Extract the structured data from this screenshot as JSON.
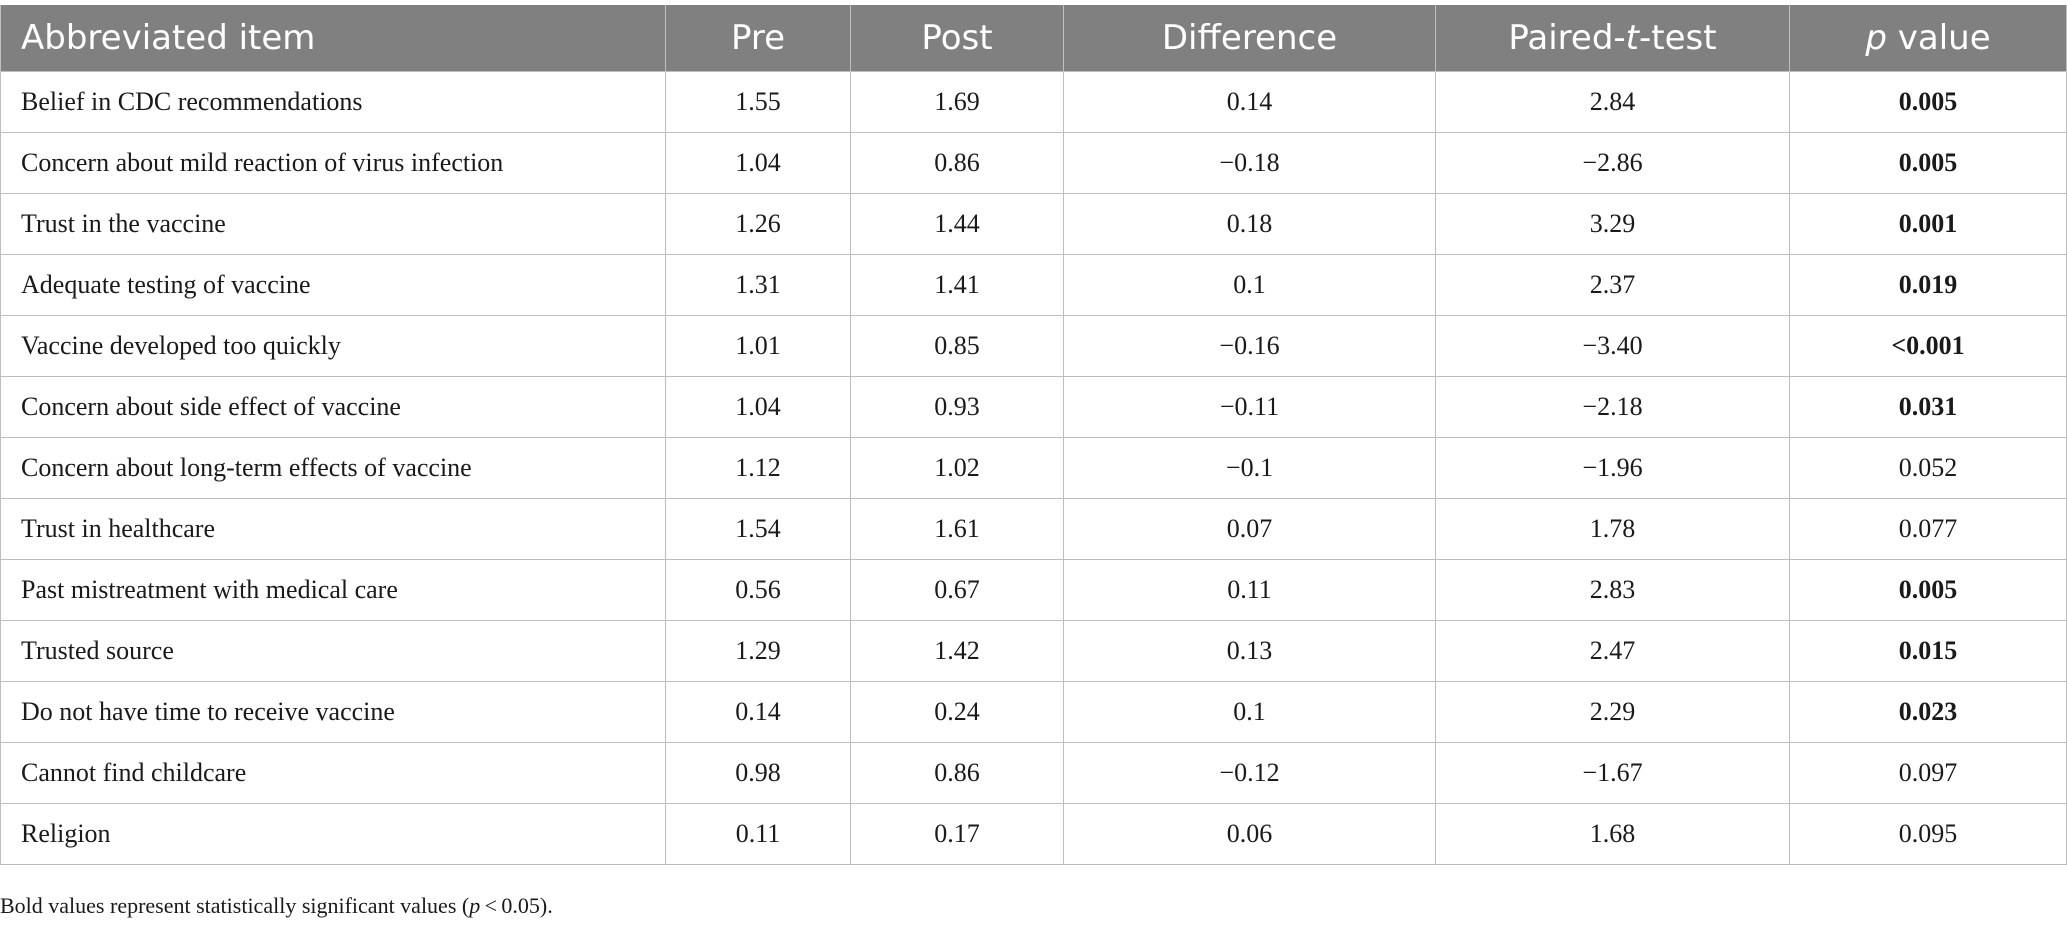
{
  "table": {
    "headers": {
      "item": "Abbreviated item",
      "pre": "Pre",
      "post": "Post",
      "difference": "Difference",
      "paired_t_prefix": "Paired-",
      "paired_t_italic": "t",
      "paired_t_suffix": "-test",
      "p_italic": "p",
      "p_suffix": " value"
    },
    "rows": [
      {
        "item": "Belief in CDC recommendations",
        "pre": "1.55",
        "post": "1.69",
        "difference": "0.14",
        "t": "2.84",
        "p": "0.005",
        "significant": true
      },
      {
        "item": "Concern about mild reaction of virus infection",
        "pre": "1.04",
        "post": "0.86",
        "difference": "−0.18",
        "t": "−2.86",
        "p": "0.005",
        "significant": true
      },
      {
        "item": "Trust in the vaccine",
        "pre": "1.26",
        "post": "1.44",
        "difference": "0.18",
        "t": "3.29",
        "p": "0.001",
        "significant": true
      },
      {
        "item": "Adequate testing of vaccine",
        "pre": "1.31",
        "post": "1.41",
        "difference": "0.1",
        "t": "2.37",
        "p": "0.019",
        "significant": true
      },
      {
        "item": "Vaccine developed too quickly",
        "pre": "1.01",
        "post": "0.85",
        "difference": "−0.16",
        "t": "−3.40",
        "p": "<0.001",
        "significant": true
      },
      {
        "item": "Concern about side effect of vaccine",
        "pre": "1.04",
        "post": "0.93",
        "difference": "−0.11",
        "t": "−2.18",
        "p": "0.031",
        "significant": true
      },
      {
        "item": "Concern about long-term effects of vaccine",
        "pre": "1.12",
        "post": "1.02",
        "difference": "−0.1",
        "t": "−1.96",
        "p": "0.052",
        "significant": false
      },
      {
        "item": "Trust in healthcare",
        "pre": "1.54",
        "post": "1.61",
        "difference": "0.07",
        "t": "1.78",
        "p": "0.077",
        "significant": false
      },
      {
        "item": "Past mistreatment with medical care",
        "pre": "0.56",
        "post": "0.67",
        "difference": "0.11",
        "t": "2.83",
        "p": "0.005",
        "significant": true
      },
      {
        "item": "Trusted source",
        "pre": "1.29",
        "post": "1.42",
        "difference": "0.13",
        "t": "2.47",
        "p": "0.015",
        "significant": true
      },
      {
        "item": "Do not have time to receive vaccine",
        "pre": "0.14",
        "post": "0.24",
        "difference": "0.1",
        "t": "2.29",
        "p": "0.023",
        "significant": true
      },
      {
        "item": "Cannot find childcare",
        "pre": "0.98",
        "post": "0.86",
        "difference": "−0.12",
        "t": "−1.67",
        "p": "0.097",
        "significant": false
      },
      {
        "item": "Religion",
        "pre": "0.11",
        "post": "0.17",
        "difference": "0.06",
        "t": "1.68",
        "p": "0.095",
        "significant": false
      }
    ]
  },
  "note": {
    "before": "Bold values represent statistically significant values (",
    "italic": "p",
    "after": " < 0.05)."
  }
}
